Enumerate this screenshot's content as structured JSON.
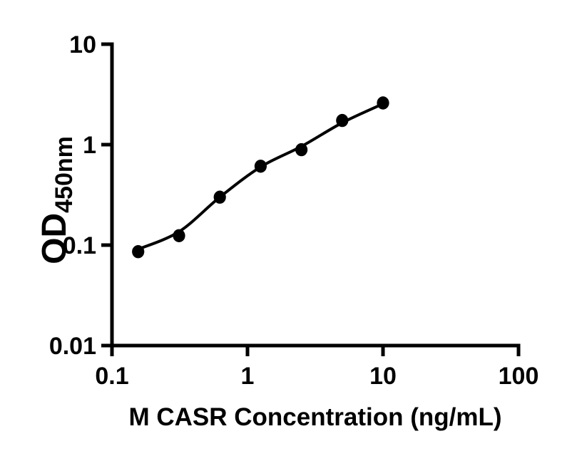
{
  "figure": {
    "background_color": "#ffffff",
    "ink_color": "#000000",
    "description": "ELISA standard curve, log-log scatter plot with fitted line"
  },
  "chart_data": {
    "type": "scatter",
    "title": "",
    "xlabel": "M CASR Concentration (ng/mL)",
    "ylabel": "OD450nm",
    "ylabel_main": "OD",
    "ylabel_sub": "450nm",
    "x_scale": "log10",
    "y_scale": "log10",
    "xlim": [
      0.1,
      100
    ],
    "ylim": [
      0.01,
      10
    ],
    "grid": false,
    "legend": "none",
    "marker_color": "#000000",
    "line_color": "#000000",
    "x_ticks": [
      {
        "value": 0.1,
        "label": "0.1"
      },
      {
        "value": 1,
        "label": "1"
      },
      {
        "value": 10,
        "label": "10"
      },
      {
        "value": 100,
        "label": "100"
      }
    ],
    "y_ticks": [
      {
        "value": 10,
        "label": "10"
      },
      {
        "value": 1,
        "label": "1"
      },
      {
        "value": 0.1,
        "label": "0.1"
      },
      {
        "value": 0.01,
        "label": "0.01"
      }
    ],
    "series": [
      {
        "name": "standard-points",
        "render": "scatter",
        "marker": "filled-circle",
        "x": [
          0.156,
          0.3125,
          0.625,
          1.25,
          2.5,
          5,
          10
        ],
        "y": [
          0.086,
          0.124,
          0.3,
          0.61,
          0.89,
          1.74,
          2.6
        ]
      },
      {
        "name": "fit-curve",
        "render": "line",
        "x": [
          0.156,
          0.3125,
          0.625,
          1.25,
          2.5,
          5,
          10
        ],
        "y": [
          0.091,
          0.136,
          0.3,
          0.6,
          0.96,
          1.65,
          2.55
        ]
      }
    ]
  }
}
